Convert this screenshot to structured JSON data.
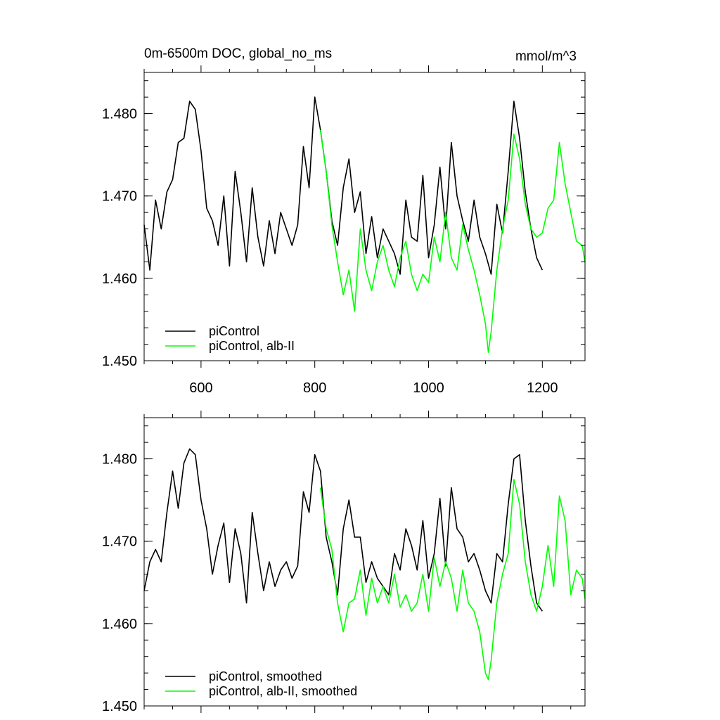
{
  "header": {
    "title": "0m-6500m DOC, global_no_ms",
    "units": "mmol/m^3"
  },
  "chart_data": [
    {
      "type": "line",
      "title": "0m-6500m DOC, global_no_ms",
      "units": "mmol/m^3",
      "xlim": [
        500,
        1275
      ],
      "ylim": [
        1.45,
        1.485
      ],
      "xticks": [
        600,
        800,
        1000,
        1200
      ],
      "xtick_labels": [
        "600",
        "800",
        "1000",
        "1200"
      ],
      "yticks": [
        1.45,
        1.46,
        1.47,
        1.48
      ],
      "ytick_labels": [
        "1.450",
        "1.460",
        "1.470",
        "1.480"
      ],
      "grid": false,
      "legend_position": "bottom-left",
      "series": [
        {
          "name": "piControl",
          "color": "#000000",
          "x": [
            500,
            510,
            520,
            530,
            540,
            550,
            560,
            570,
            580,
            590,
            600,
            610,
            620,
            630,
            640,
            650,
            660,
            670,
            680,
            690,
            700,
            710,
            720,
            730,
            740,
            750,
            760,
            770,
            780,
            790,
            800,
            810,
            820,
            830,
            840,
            850,
            860,
            870,
            880,
            890,
            900,
            910,
            920,
            930,
            940,
            950,
            960,
            970,
            980,
            990,
            1000,
            1010,
            1020,
            1030,
            1040,
            1050,
            1060,
            1070,
            1080,
            1090,
            1100,
            1110,
            1120,
            1130,
            1140,
            1150,
            1160,
            1170,
            1180,
            1190,
            1200
          ],
          "y": [
            1.4665,
            1.461,
            1.4695,
            1.466,
            1.4705,
            1.472,
            1.4765,
            1.477,
            1.4815,
            1.4805,
            1.4755,
            1.4685,
            1.467,
            1.464,
            1.47,
            1.4615,
            1.473,
            1.468,
            1.462,
            1.471,
            1.465,
            1.4615,
            1.467,
            1.463,
            1.468,
            1.466,
            1.464,
            1.4665,
            1.476,
            1.471,
            1.482,
            1.478,
            1.473,
            1.467,
            1.464,
            1.471,
            1.4745,
            1.468,
            1.4705,
            1.463,
            1.4675,
            1.4625,
            1.466,
            1.4645,
            1.463,
            1.4605,
            1.4695,
            1.465,
            1.4645,
            1.4725,
            1.4625,
            1.4665,
            1.4735,
            1.466,
            1.4765,
            1.47,
            1.467,
            1.4645,
            1.4695,
            1.465,
            1.463,
            1.4605,
            1.469,
            1.4655,
            1.473,
            1.4815,
            1.477,
            1.4705,
            1.466,
            1.4625,
            1.461
          ]
        },
        {
          "name": "piControl, alb-II",
          "color": "#00ff00",
          "x": [
            810,
            820,
            830,
            840,
            850,
            860,
            870,
            880,
            890,
            900,
            910,
            920,
            930,
            940,
            950,
            960,
            970,
            980,
            990,
            1000,
            1010,
            1020,
            1030,
            1040,
            1050,
            1060,
            1070,
            1080,
            1090,
            1100,
            1105,
            1110,
            1120,
            1130,
            1140,
            1150,
            1160,
            1170,
            1180,
            1190,
            1200,
            1210,
            1220,
            1230,
            1240,
            1250,
            1260,
            1270,
            1275
          ],
          "y": [
            1.478,
            1.473,
            1.4665,
            1.462,
            1.458,
            1.461,
            1.456,
            1.466,
            1.461,
            1.4585,
            1.462,
            1.464,
            1.461,
            1.459,
            1.4625,
            1.4645,
            1.4605,
            1.4585,
            1.4605,
            1.4595,
            1.465,
            1.462,
            1.468,
            1.4625,
            1.461,
            1.4665,
            1.4635,
            1.461,
            1.458,
            1.4545,
            1.451,
            1.4535,
            1.461,
            1.466,
            1.4695,
            1.4775,
            1.4745,
            1.469,
            1.466,
            1.465,
            1.4655,
            1.4685,
            1.4695,
            1.4765,
            1.4715,
            1.468,
            1.4645,
            1.464,
            1.462
          ]
        }
      ]
    },
    {
      "type": "line",
      "xlim": [
        500,
        1275
      ],
      "ylim": [
        1.45,
        1.485
      ],
      "xticks": [
        600,
        800,
        1000,
        1200
      ],
      "yticks": [
        1.45,
        1.46,
        1.47,
        1.48
      ],
      "ytick_labels": [
        "1.450",
        "1.460",
        "1.470",
        "1.480"
      ],
      "grid": false,
      "legend_position": "bottom-left",
      "series": [
        {
          "name": "piControl, smoothed",
          "color": "#000000",
          "x": [
            500,
            510,
            520,
            530,
            540,
            550,
            560,
            570,
            580,
            590,
            600,
            610,
            620,
            630,
            640,
            650,
            660,
            670,
            680,
            690,
            700,
            710,
            720,
            730,
            740,
            750,
            760,
            770,
            780,
            790,
            800,
            810,
            820,
            830,
            840,
            850,
            860,
            870,
            880,
            890,
            900,
            910,
            920,
            930,
            940,
            950,
            960,
            970,
            980,
            990,
            1000,
            1010,
            1020,
            1030,
            1040,
            1050,
            1060,
            1070,
            1080,
            1090,
            1100,
            1110,
            1120,
            1130,
            1140,
            1150,
            1160,
            1170,
            1180,
            1190,
            1200
          ],
          "y": [
            1.464,
            1.4675,
            1.469,
            1.4675,
            1.4735,
            1.4785,
            1.474,
            1.4795,
            1.4812,
            1.4805,
            1.475,
            1.4715,
            1.466,
            1.4695,
            1.4722,
            1.465,
            1.4715,
            1.4685,
            1.4625,
            1.4735,
            1.4685,
            1.464,
            1.4675,
            1.4645,
            1.4665,
            1.4675,
            1.4655,
            1.467,
            1.476,
            1.4735,
            1.4805,
            1.4785,
            1.4705,
            1.4675,
            1.4635,
            1.4715,
            1.475,
            1.4705,
            1.4705,
            1.465,
            1.4675,
            1.4655,
            1.4645,
            1.4635,
            1.4685,
            1.4665,
            1.4715,
            1.4695,
            1.4665,
            1.4725,
            1.4655,
            1.4685,
            1.4752,
            1.467,
            1.4765,
            1.4715,
            1.4705,
            1.4675,
            1.4685,
            1.4665,
            1.464,
            1.4625,
            1.4685,
            1.4675,
            1.4745,
            1.48,
            1.4805,
            1.4725,
            1.467,
            1.4625,
            1.4615
          ]
        },
        {
          "name": "piControl, alb-II, smoothed",
          "color": "#00ff00",
          "x": [
            810,
            820,
            830,
            840,
            850,
            860,
            870,
            880,
            890,
            900,
            910,
            920,
            930,
            940,
            950,
            960,
            970,
            980,
            990,
            1000,
            1010,
            1020,
            1030,
            1040,
            1050,
            1060,
            1070,
            1080,
            1090,
            1100,
            1105,
            1110,
            1120,
            1130,
            1140,
            1150,
            1160,
            1170,
            1180,
            1190,
            1200,
            1210,
            1220,
            1230,
            1240,
            1250,
            1260,
            1270,
            1275
          ],
          "y": [
            1.4765,
            1.4715,
            1.469,
            1.4625,
            1.459,
            1.4625,
            1.463,
            1.4665,
            1.461,
            1.4655,
            1.4625,
            1.4645,
            1.4625,
            1.466,
            1.462,
            1.4635,
            1.4615,
            1.4625,
            1.466,
            1.4615,
            1.468,
            1.4645,
            1.4675,
            1.4655,
            1.4615,
            1.4665,
            1.4625,
            1.4615,
            1.459,
            1.454,
            1.4532,
            1.4555,
            1.4625,
            1.466,
            1.4685,
            1.4775,
            1.4745,
            1.4675,
            1.4635,
            1.4615,
            1.4645,
            1.4695,
            1.4645,
            1.4755,
            1.4725,
            1.4635,
            1.4665,
            1.4655,
            1.463
          ]
        }
      ]
    }
  ]
}
